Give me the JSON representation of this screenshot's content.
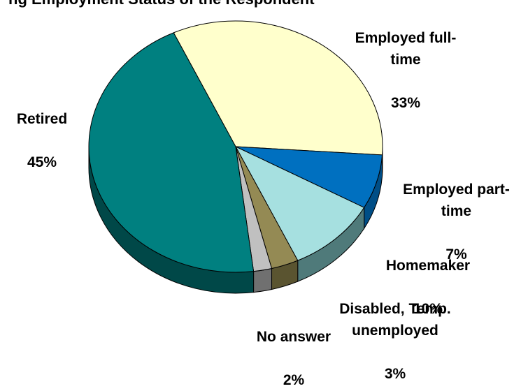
{
  "title_fragment": "ng Employment Status of the Respondent",
  "chart_data": {
    "type": "pie",
    "three_d": true,
    "slices": [
      {
        "label": "Employed full-\ntime",
        "value_label": "33%",
        "value": 33,
        "color": "#ffffcc",
        "side_color": "#b3b38f"
      },
      {
        "label": "Employed part-\ntime",
        "value_label": "7%",
        "value": 7,
        "color": "#0070c0",
        "side_color": "#004e86"
      },
      {
        "label": "Homemaker",
        "value_label": "10%",
        "value": 10,
        "color": "#a6e0e0",
        "side_color": "#4f7a7a"
      },
      {
        "label": "Disabled, Temp.\nunemployed",
        "value_label": "3%",
        "value": 3,
        "color": "#948a54",
        "side_color": "#5a5430"
      },
      {
        "label": "No answer",
        "value_label": "2%",
        "value": 2,
        "color": "#c0c0c0",
        "side_color": "#707070"
      },
      {
        "label": "Retired",
        "value_label": "45%",
        "value": 45,
        "color": "#008080",
        "side_color": "#004848"
      }
    ]
  }
}
